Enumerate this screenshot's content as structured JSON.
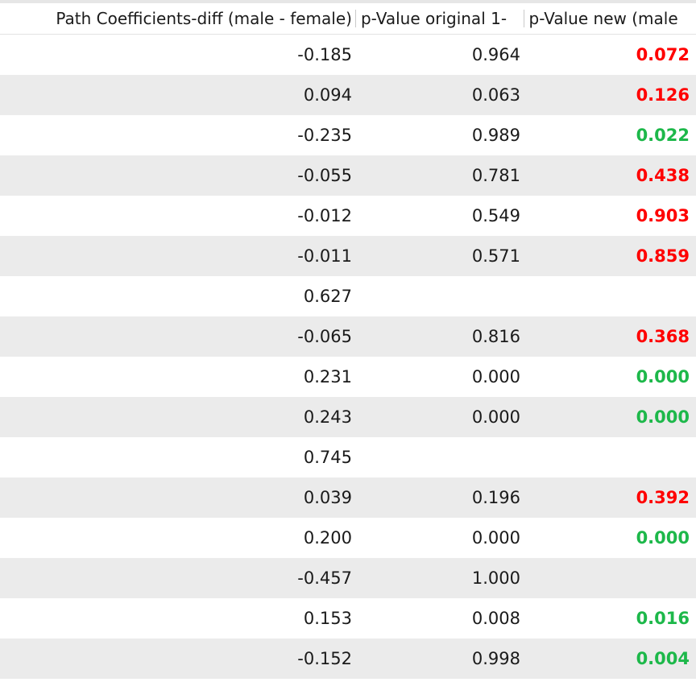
{
  "table": {
    "headers": [
      "Path Coefficients-diff (male - female)",
      "p-Value original 1-",
      "p-Value new (male"
    ],
    "colors": {
      "red": "#ff0000",
      "green": "#1db84a"
    },
    "rows": [
      {
        "diff": "-0.185",
        "p_orig": "0.964",
        "p_new": "0.072",
        "color": "red"
      },
      {
        "diff": "0.094",
        "p_orig": "0.063",
        "p_new": "0.126",
        "color": "red"
      },
      {
        "diff": "-0.235",
        "p_orig": "0.989",
        "p_new": "0.022",
        "color": "green"
      },
      {
        "diff": "-0.055",
        "p_orig": "0.781",
        "p_new": "0.438",
        "color": "red"
      },
      {
        "diff": "-0.012",
        "p_orig": "0.549",
        "p_new": "0.903",
        "color": "red"
      },
      {
        "diff": "-0.011",
        "p_orig": "0.571",
        "p_new": "0.859",
        "color": "red"
      },
      {
        "diff": "0.627",
        "p_orig": "",
        "p_new": "",
        "color": ""
      },
      {
        "diff": "-0.065",
        "p_orig": "0.816",
        "p_new": "0.368",
        "color": "red"
      },
      {
        "diff": "0.231",
        "p_orig": "0.000",
        "p_new": "0.000",
        "color": "green"
      },
      {
        "diff": "0.243",
        "p_orig": "0.000",
        "p_new": "0.000",
        "color": "green"
      },
      {
        "diff": "0.745",
        "p_orig": "",
        "p_new": "",
        "color": ""
      },
      {
        "diff": "0.039",
        "p_orig": "0.196",
        "p_new": "0.392",
        "color": "red"
      },
      {
        "diff": "0.200",
        "p_orig": "0.000",
        "p_new": "0.000",
        "color": "green"
      },
      {
        "diff": "-0.457",
        "p_orig": "1.000",
        "p_new": "",
        "color": ""
      },
      {
        "diff": "0.153",
        "p_orig": "0.008",
        "p_new": "0.016",
        "color": "green"
      },
      {
        "diff": "-0.152",
        "p_orig": "0.998",
        "p_new": "0.004",
        "color": "green"
      }
    ]
  }
}
